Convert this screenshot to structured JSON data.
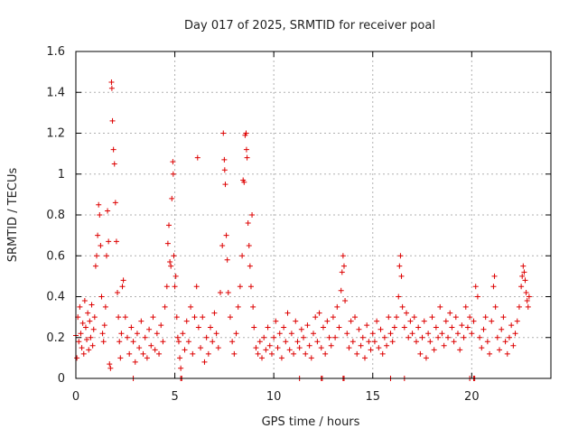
{
  "chart_data": {
    "type": "scatter",
    "title": "Day 017 of 2025, SRMTID for receiver poal",
    "xlabel": "GPS time / hours",
    "ylabel": "SRMTID / TECUs",
    "xlim": [
      0,
      24
    ],
    "ylim": [
      0,
      1.6
    ],
    "xticks": [
      0,
      5,
      10,
      15,
      20
    ],
    "xtick_labels": [
      "0",
      "5",
      "10",
      "15",
      "20"
    ],
    "yticks": [
      0,
      0.2,
      0.4,
      0.6,
      0.8,
      1.0,
      1.2,
      1.4,
      1.6
    ],
    "ytick_labels": [
      "0",
      "0.2",
      "0.4",
      "0.6",
      "0.8",
      "1",
      "1.2",
      "1.4",
      "1.6"
    ],
    "grid": true,
    "marker": "+",
    "series": [
      {
        "name": "SRMTID",
        "color": "#dd0000",
        "points": [
          [
            0.0,
            0.21
          ],
          [
            0.05,
            0.1
          ],
          [
            0.1,
            0.3
          ],
          [
            0.15,
            0.18
          ],
          [
            0.2,
            0.35
          ],
          [
            0.25,
            0.22
          ],
          [
            0.3,
            0.15
          ],
          [
            0.35,
            0.27
          ],
          [
            0.4,
            0.12
          ],
          [
            0.45,
            0.38
          ],
          [
            0.5,
            0.25
          ],
          [
            0.55,
            0.19
          ],
          [
            0.6,
            0.32
          ],
          [
            0.65,
            0.14
          ],
          [
            0.7,
            0.28
          ],
          [
            0.75,
            0.2
          ],
          [
            0.8,
            0.36
          ],
          [
            0.85,
            0.16
          ],
          [
            0.9,
            0.24
          ],
          [
            0.95,
            0.3
          ],
          [
            1.0,
            0.55
          ],
          [
            1.05,
            0.6
          ],
          [
            1.1,
            0.7
          ],
          [
            1.15,
            0.85
          ],
          [
            1.2,
            0.8
          ],
          [
            1.25,
            0.65
          ],
          [
            1.3,
            0.4
          ],
          [
            1.35,
            0.22
          ],
          [
            1.4,
            0.18
          ],
          [
            1.45,
            0.26
          ],
          [
            1.5,
            0.35
          ],
          [
            1.55,
            0.6
          ],
          [
            1.6,
            0.82
          ],
          [
            1.65,
            0.67
          ],
          [
            1.7,
            0.07
          ],
          [
            1.75,
            0.05
          ],
          [
            1.8,
            1.45
          ],
          [
            1.82,
            1.42
          ],
          [
            1.85,
            1.26
          ],
          [
            1.9,
            1.12
          ],
          [
            1.95,
            1.05
          ],
          [
            2.0,
            0.86
          ],
          [
            2.05,
            0.67
          ],
          [
            2.1,
            0.42
          ],
          [
            2.15,
            0.3
          ],
          [
            2.2,
            0.18
          ],
          [
            2.25,
            0.1
          ],
          [
            2.3,
            0.22
          ],
          [
            2.35,
            0.45
          ],
          [
            2.4,
            0.48
          ],
          [
            2.5,
            0.3
          ],
          [
            2.6,
            0.2
          ],
          [
            2.7,
            0.12
          ],
          [
            2.8,
            0.25
          ],
          [
            2.9,
            0.18
          ],
          [
            3.0,
            0.08
          ],
          [
            3.1,
            0.22
          ],
          [
            3.2,
            0.15
          ],
          [
            3.3,
            0.28
          ],
          [
            3.4,
            0.12
          ],
          [
            3.5,
            0.2
          ],
          [
            3.6,
            0.1
          ],
          [
            3.7,
            0.24
          ],
          [
            3.8,
            0.16
          ],
          [
            3.9,
            0.3
          ],
          [
            4.0,
            0.14
          ],
          [
            4.1,
            0.22
          ],
          [
            4.2,
            0.12
          ],
          [
            4.3,
            0.26
          ],
          [
            4.4,
            0.18
          ],
          [
            4.5,
            0.35
          ],
          [
            4.6,
            0.45
          ],
          [
            4.65,
            0.66
          ],
          [
            4.7,
            0.75
          ],
          [
            4.75,
            0.57
          ],
          [
            4.8,
            0.55
          ],
          [
            4.85,
            0.88
          ],
          [
            4.9,
            1.06
          ],
          [
            4.92,
            1.0
          ],
          [
            4.95,
            0.6
          ],
          [
            5.0,
            0.45
          ],
          [
            5.05,
            0.5
          ],
          [
            5.1,
            0.3
          ],
          [
            5.15,
            0.2
          ],
          [
            5.2,
            0.18
          ],
          [
            5.25,
            0.1
          ],
          [
            5.3,
            0.05
          ],
          [
            5.4,
            0.22
          ],
          [
            5.5,
            0.14
          ],
          [
            5.6,
            0.28
          ],
          [
            5.7,
            0.18
          ],
          [
            5.8,
            0.35
          ],
          [
            5.9,
            0.12
          ],
          [
            6.0,
            0.3
          ],
          [
            6.1,
            0.45
          ],
          [
            6.15,
            1.08
          ],
          [
            6.2,
            0.25
          ],
          [
            6.3,
            0.15
          ],
          [
            6.4,
            0.3
          ],
          [
            6.5,
            0.08
          ],
          [
            6.6,
            0.2
          ],
          [
            6.7,
            0.12
          ],
          [
            6.8,
            0.25
          ],
          [
            6.9,
            0.18
          ],
          [
            7.0,
            0.32
          ],
          [
            7.1,
            0.22
          ],
          [
            7.2,
            0.15
          ],
          [
            7.3,
            0.42
          ],
          [
            7.4,
            0.65
          ],
          [
            7.45,
            1.2
          ],
          [
            7.5,
            1.07
          ],
          [
            7.52,
            1.02
          ],
          [
            7.55,
            0.95
          ],
          [
            7.6,
            0.7
          ],
          [
            7.65,
            0.58
          ],
          [
            7.7,
            0.42
          ],
          [
            7.8,
            0.3
          ],
          [
            7.9,
            0.18
          ],
          [
            8.0,
            0.12
          ],
          [
            8.1,
            0.22
          ],
          [
            8.2,
            0.35
          ],
          [
            8.3,
            0.45
          ],
          [
            8.4,
            0.6
          ],
          [
            8.45,
            0.97
          ],
          [
            8.5,
            0.96
          ],
          [
            8.55,
            1.19
          ],
          [
            8.6,
            1.2
          ],
          [
            8.62,
            1.12
          ],
          [
            8.65,
            1.08
          ],
          [
            8.7,
            0.76
          ],
          [
            8.75,
            0.65
          ],
          [
            8.8,
            0.55
          ],
          [
            8.85,
            0.45
          ],
          [
            8.9,
            0.8
          ],
          [
            8.95,
            0.35
          ],
          [
            9.0,
            0.25
          ],
          [
            9.1,
            0.15
          ],
          [
            9.2,
            0.12
          ],
          [
            9.3,
            0.18
          ],
          [
            9.4,
            0.1
          ],
          [
            9.5,
            0.2
          ],
          [
            9.6,
            0.14
          ],
          [
            9.7,
            0.25
          ],
          [
            9.8,
            0.16
          ],
          [
            9.9,
            0.12
          ],
          [
            10.0,
            0.2
          ],
          [
            10.1,
            0.28
          ],
          [
            10.2,
            0.15
          ],
          [
            10.3,
            0.22
          ],
          [
            10.4,
            0.1
          ],
          [
            10.5,
            0.25
          ],
          [
            10.6,
            0.18
          ],
          [
            10.7,
            0.32
          ],
          [
            10.8,
            0.14
          ],
          [
            10.9,
            0.22
          ],
          [
            11.0,
            0.12
          ],
          [
            11.1,
            0.28
          ],
          [
            11.2,
            0.18
          ],
          [
            11.3,
            0.15
          ],
          [
            11.4,
            0.24
          ],
          [
            11.5,
            0.2
          ],
          [
            11.6,
            0.12
          ],
          [
            11.7,
            0.26
          ],
          [
            11.8,
            0.16
          ],
          [
            11.9,
            0.1
          ],
          [
            12.0,
            0.22
          ],
          [
            12.1,
            0.3
          ],
          [
            12.2,
            0.18
          ],
          [
            12.3,
            0.32
          ],
          [
            12.4,
            0.15
          ],
          [
            12.5,
            0.25
          ],
          [
            12.6,
            0.12
          ],
          [
            12.7,
            0.28
          ],
          [
            12.8,
            0.2
          ],
          [
            12.9,
            0.16
          ],
          [
            13.0,
            0.3
          ],
          [
            13.1,
            0.2
          ],
          [
            13.2,
            0.35
          ],
          [
            13.3,
            0.25
          ],
          [
            13.4,
            0.43
          ],
          [
            13.45,
            0.52
          ],
          [
            13.5,
            0.6
          ],
          [
            13.55,
            0.55
          ],
          [
            13.6,
            0.38
          ],
          [
            13.7,
            0.22
          ],
          [
            13.8,
            0.15
          ],
          [
            13.9,
            0.28
          ],
          [
            14.0,
            0.18
          ],
          [
            14.1,
            0.3
          ],
          [
            14.2,
            0.12
          ],
          [
            14.3,
            0.24
          ],
          [
            14.4,
            0.16
          ],
          [
            14.5,
            0.2
          ],
          [
            14.6,
            0.1
          ],
          [
            14.7,
            0.26
          ],
          [
            14.8,
            0.18
          ],
          [
            14.9,
            0.14
          ],
          [
            15.0,
            0.22
          ],
          [
            15.1,
            0.18
          ],
          [
            15.2,
            0.28
          ],
          [
            15.3,
            0.15
          ],
          [
            15.4,
            0.24
          ],
          [
            15.5,
            0.12
          ],
          [
            15.6,
            0.2
          ],
          [
            15.7,
            0.16
          ],
          [
            15.8,
            0.3
          ],
          [
            15.9,
            0.22
          ],
          [
            16.0,
            0.18
          ],
          [
            16.1,
            0.25
          ],
          [
            16.2,
            0.3
          ],
          [
            16.3,
            0.4
          ],
          [
            16.35,
            0.55
          ],
          [
            16.4,
            0.6
          ],
          [
            16.45,
            0.5
          ],
          [
            16.5,
            0.35
          ],
          [
            16.6,
            0.25
          ],
          [
            16.7,
            0.32
          ],
          [
            16.8,
            0.2
          ],
          [
            16.9,
            0.28
          ],
          [
            17.0,
            0.22
          ],
          [
            17.1,
            0.3
          ],
          [
            17.2,
            0.18
          ],
          [
            17.3,
            0.25
          ],
          [
            17.4,
            0.12
          ],
          [
            17.5,
            0.2
          ],
          [
            17.6,
            0.28
          ],
          [
            17.7,
            0.1
          ],
          [
            17.8,
            0.22
          ],
          [
            17.9,
            0.18
          ],
          [
            18.0,
            0.3
          ],
          [
            18.1,
            0.14
          ],
          [
            18.2,
            0.25
          ],
          [
            18.3,
            0.2
          ],
          [
            18.4,
            0.35
          ],
          [
            18.5,
            0.22
          ],
          [
            18.6,
            0.16
          ],
          [
            18.7,
            0.28
          ],
          [
            18.8,
            0.2
          ],
          [
            18.9,
            0.32
          ],
          [
            19.0,
            0.25
          ],
          [
            19.1,
            0.18
          ],
          [
            19.2,
            0.3
          ],
          [
            19.3,
            0.22
          ],
          [
            19.4,
            0.14
          ],
          [
            19.5,
            0.26
          ],
          [
            19.6,
            0.2
          ],
          [
            19.7,
            0.35
          ],
          [
            19.8,
            0.25
          ],
          [
            19.9,
            0.3
          ],
          [
            20.0,
            0.22
          ],
          [
            20.1,
            0.28
          ],
          [
            20.2,
            0.45
          ],
          [
            20.3,
            0.4
          ],
          [
            20.4,
            0.2
          ],
          [
            20.5,
            0.15
          ],
          [
            20.6,
            0.24
          ],
          [
            20.7,
            0.3
          ],
          [
            20.8,
            0.18
          ],
          [
            20.9,
            0.12
          ],
          [
            21.0,
            0.28
          ],
          [
            21.1,
            0.45
          ],
          [
            21.15,
            0.5
          ],
          [
            21.2,
            0.35
          ],
          [
            21.3,
            0.2
          ],
          [
            21.4,
            0.14
          ],
          [
            21.5,
            0.24
          ],
          [
            21.6,
            0.3
          ],
          [
            21.7,
            0.18
          ],
          [
            21.8,
            0.12
          ],
          [
            21.9,
            0.2
          ],
          [
            22.0,
            0.26
          ],
          [
            22.1,
            0.16
          ],
          [
            22.2,
            0.22
          ],
          [
            22.3,
            0.28
          ],
          [
            22.4,
            0.35
          ],
          [
            22.5,
            0.45
          ],
          [
            22.55,
            0.5
          ],
          [
            22.6,
            0.55
          ],
          [
            22.65,
            0.52
          ],
          [
            22.7,
            0.48
          ],
          [
            22.75,
            0.42
          ],
          [
            22.8,
            0.38
          ],
          [
            22.85,
            0.35
          ],
          [
            22.9,
            0.4
          ],
          [
            2.9,
            0.0
          ],
          [
            5.3,
            0.0
          ],
          [
            5.35,
            0.0
          ],
          [
            11.3,
            0.0
          ],
          [
            12.4,
            0.0
          ],
          [
            12.45,
            0.0
          ],
          [
            13.5,
            0.0
          ],
          [
            13.55,
            0.0
          ],
          [
            15.9,
            0.0
          ],
          [
            16.6,
            0.0
          ],
          [
            19.9,
            0.0
          ],
          [
            20.1,
            0.0
          ],
          [
            20.15,
            0.0
          ]
        ]
      }
    ]
  }
}
